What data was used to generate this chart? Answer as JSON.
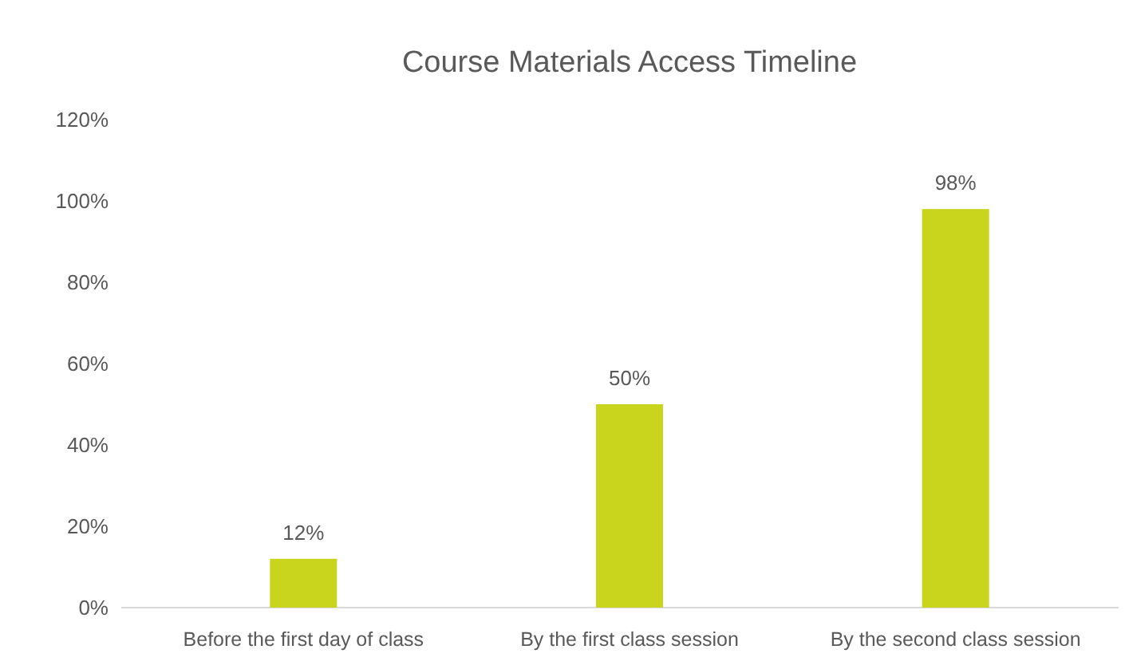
{
  "chart_data": {
    "type": "bar",
    "title": "Course Materials Access Timeline",
    "categories": [
      "Before the first day of class",
      "By the first class session",
      "By the second class session"
    ],
    "values": [
      12,
      50,
      98
    ],
    "color": "#c9d41c",
    "value_labels": [
      "12%",
      "50%",
      "98%"
    ],
    "ylim": [
      0,
      120
    ],
    "yticks": [
      {
        "value": 0,
        "label": "0%"
      },
      {
        "value": 20,
        "label": "20%"
      },
      {
        "value": 40,
        "label": "40%"
      },
      {
        "value": 60,
        "label": "60%"
      },
      {
        "value": 80,
        "label": "80%"
      },
      {
        "value": 100,
        "label": "100%"
      },
      {
        "value": 120,
        "label": "120%"
      }
    ],
    "grid": false
  }
}
